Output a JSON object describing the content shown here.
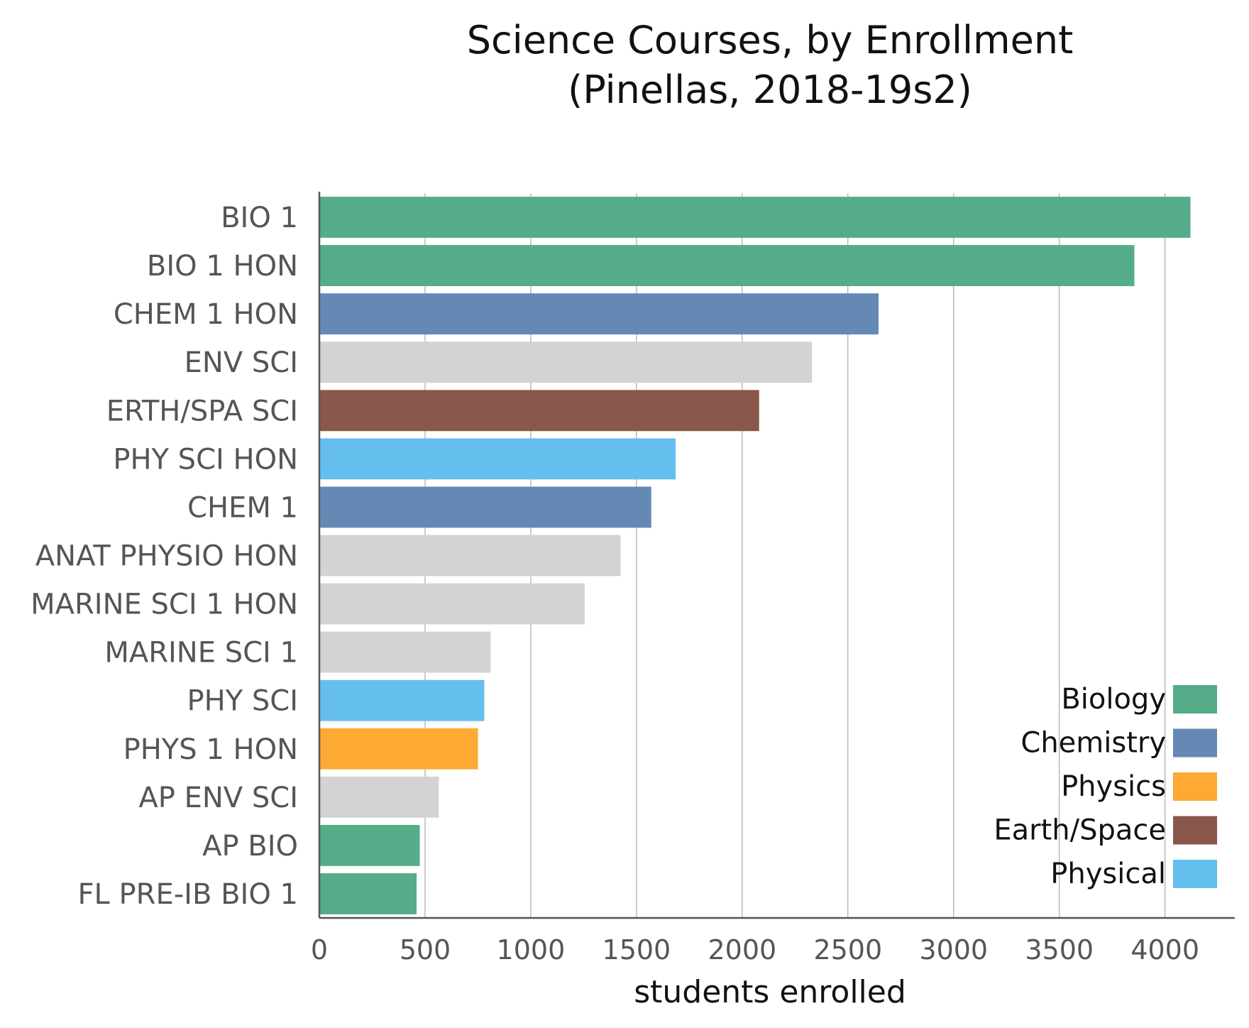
{
  "chart_data": {
    "type": "bar",
    "orientation": "horizontal",
    "title_lines": [
      "Science Courses, by Enrollment",
      "(Pinellas, 2018-19s2)"
    ],
    "xlabel": "students enrolled",
    "ylabel": "",
    "xlim": [
      0,
      4330
    ],
    "xticks": [
      0,
      500,
      1000,
      1500,
      2000,
      2500,
      3000,
      3500,
      4000
    ],
    "grid": "vertical",
    "legend_position": "bottom-right",
    "categories": [
      "BIO 1",
      "BIO 1 HON",
      "CHEM 1 HON",
      "ENV SCI",
      "ERTH/SPA SCI",
      "PHY SCI HON",
      "CHEM 1",
      "ANAT PHYSIO HON",
      "MARINE SCI 1 HON",
      "MARINE SCI 1",
      "PHY SCI",
      "PHYS 1 HON",
      "AP ENV SCI",
      "AP BIO",
      "FL PRE-IB BIO 1"
    ],
    "values": [
      4120,
      3855,
      2645,
      2330,
      2080,
      1685,
      1570,
      1425,
      1255,
      810,
      780,
      750,
      565,
      475,
      460
    ],
    "groups": [
      "Biology",
      "Biology",
      "Chemistry",
      "Other",
      "Earth/Space",
      "Physical",
      "Chemistry",
      "Other",
      "Other",
      "Other",
      "Physical",
      "Physics",
      "Other",
      "Biology",
      "Biology"
    ],
    "colors": {
      "Biology": "#55ac88",
      "Chemistry": "#6589b5",
      "Physics": "#fcaa33",
      "Earth/Space": "#8a574b",
      "Physical": "#64bfee",
      "Other": "#d3d3d3"
    },
    "legend": [
      "Biology",
      "Chemistry",
      "Physics",
      "Earth/Space",
      "Physical"
    ]
  }
}
